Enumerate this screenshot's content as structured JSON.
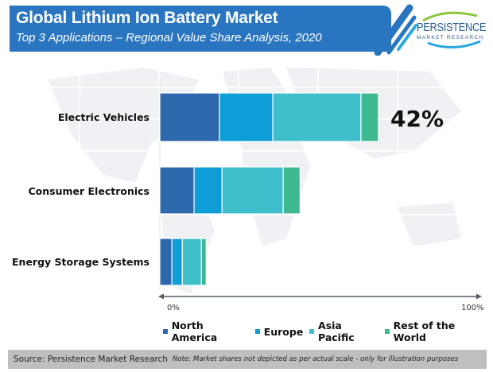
{
  "header": {
    "title": "Global Lithium Ion Battery Market",
    "subtitle": "Top 3 Applications – Regional Value Share Analysis, 2020"
  },
  "logo": {
    "name": "PERSISTENCE",
    "tagline": "MARKET RESEARCH"
  },
  "colors": {
    "banner": "#2a75bf",
    "north_america": "#2e68ad",
    "europe": "#0e9dd6",
    "asia_pacific": "#3ebfcb",
    "rest_of_world": "#3db890"
  },
  "chart_data": {
    "type": "bar",
    "orientation": "horizontal-stacked",
    "title": "Global Lithium Ion Battery Market",
    "subtitle": "Top 3 Applications – Regional Value Share Analysis, 2020",
    "categories": [
      "Electric Vehicles",
      "Consumer Electronics",
      "Energy Storage Systems"
    ],
    "series": [
      {
        "name": "North America",
        "values": [
          18.8,
          10.8,
          3.8
        ]
      },
      {
        "name": "Europe",
        "values": [
          16.8,
          8.8,
          3.3
        ]
      },
      {
        "name": "Asia Pacific",
        "values": [
          27.8,
          19.3,
          6.0
        ]
      },
      {
        "name": "Rest of the World",
        "values": [
          5.5,
          5.3,
          1.5
        ]
      }
    ],
    "annotations": [
      {
        "category": "Electric Vehicles",
        "text": "42%"
      }
    ],
    "xlim": [
      0,
      100
    ],
    "x_tick_labels": [
      "0%",
      "100%"
    ],
    "xlabel": "",
    "ylabel": "",
    "legend": "bottom",
    "grid": false
  },
  "legend": [
    {
      "label": "North America"
    },
    {
      "label": "Europe"
    },
    {
      "label": "Asia Pacific"
    },
    {
      "label": "Rest of the World"
    }
  ],
  "footer": {
    "source": "Source: Persistence Market Research",
    "note": "Note: Market shares not depicted as per actual scale - only for illustration purposes"
  }
}
